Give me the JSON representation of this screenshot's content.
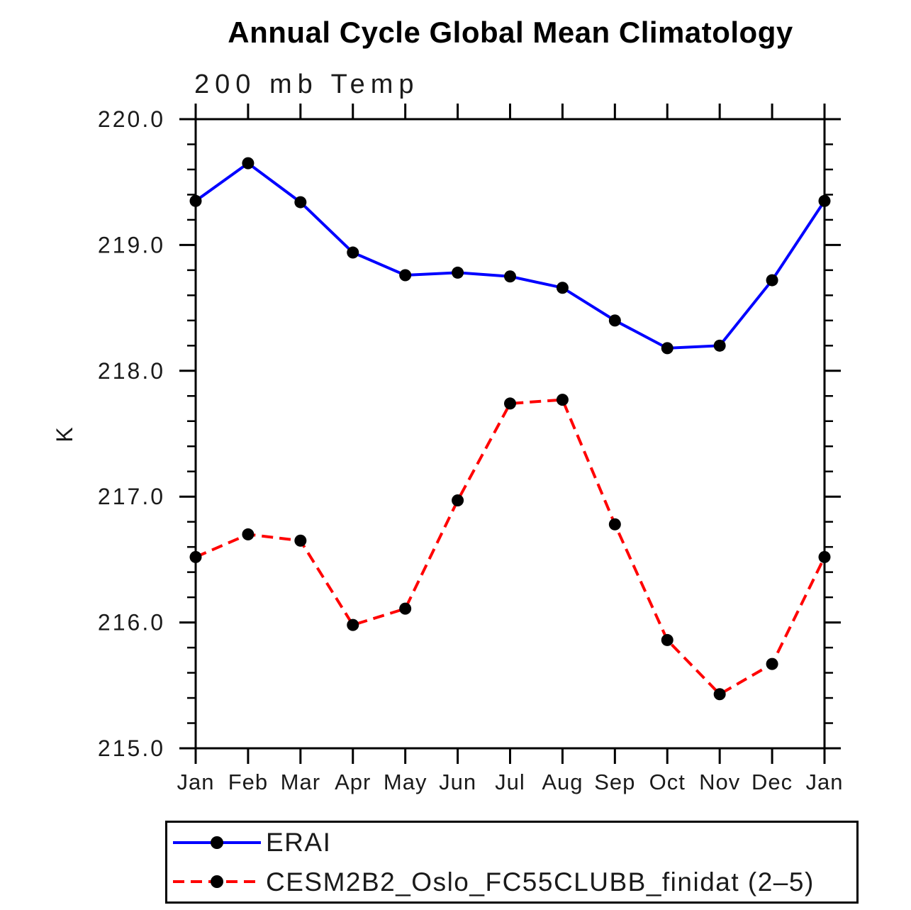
{
  "page": {
    "title": "Annual Cycle Global Mean Climatology",
    "subtitle": "200 mb Temp",
    "ylabel": "K"
  },
  "chart_data": {
    "type": "line",
    "title": "Annual Cycle Global Mean Climatology",
    "subtitle": "200 mb Temp",
    "xlabel": "",
    "ylabel": "K",
    "x": [
      "Jan",
      "Feb",
      "Mar",
      "Apr",
      "May",
      "Jun",
      "Jul",
      "Aug",
      "Sep",
      "Oct",
      "Nov",
      "Dec",
      "Jan"
    ],
    "ylim": [
      215.0,
      220.0
    ],
    "ytick_major": 1.0,
    "ytick_minor": 0.2,
    "ytick_labels": [
      "215.0",
      "216.0",
      "217.0",
      "218.0",
      "219.0",
      "220.0"
    ],
    "grid": false,
    "legend_position": "bottom",
    "axis_color": "#000000",
    "marker_color": "#000000",
    "series": [
      {
        "name": "ERAI",
        "color": "#0000ff",
        "style": "solid",
        "marker": "circle",
        "values": [
          219.35,
          219.65,
          219.34,
          218.94,
          218.76,
          218.78,
          218.75,
          218.66,
          218.4,
          218.18,
          218.2,
          218.72,
          219.35
        ]
      },
      {
        "name": "CESM2B2_Oslo_FC55CLUBB_finidat (2–5)",
        "color": "#ff0000",
        "style": "dashed",
        "marker": "circle",
        "values": [
          216.52,
          216.7,
          216.65,
          215.98,
          216.11,
          216.97,
          217.74,
          217.77,
          216.78,
          215.86,
          215.43,
          215.67,
          216.52
        ]
      }
    ]
  }
}
